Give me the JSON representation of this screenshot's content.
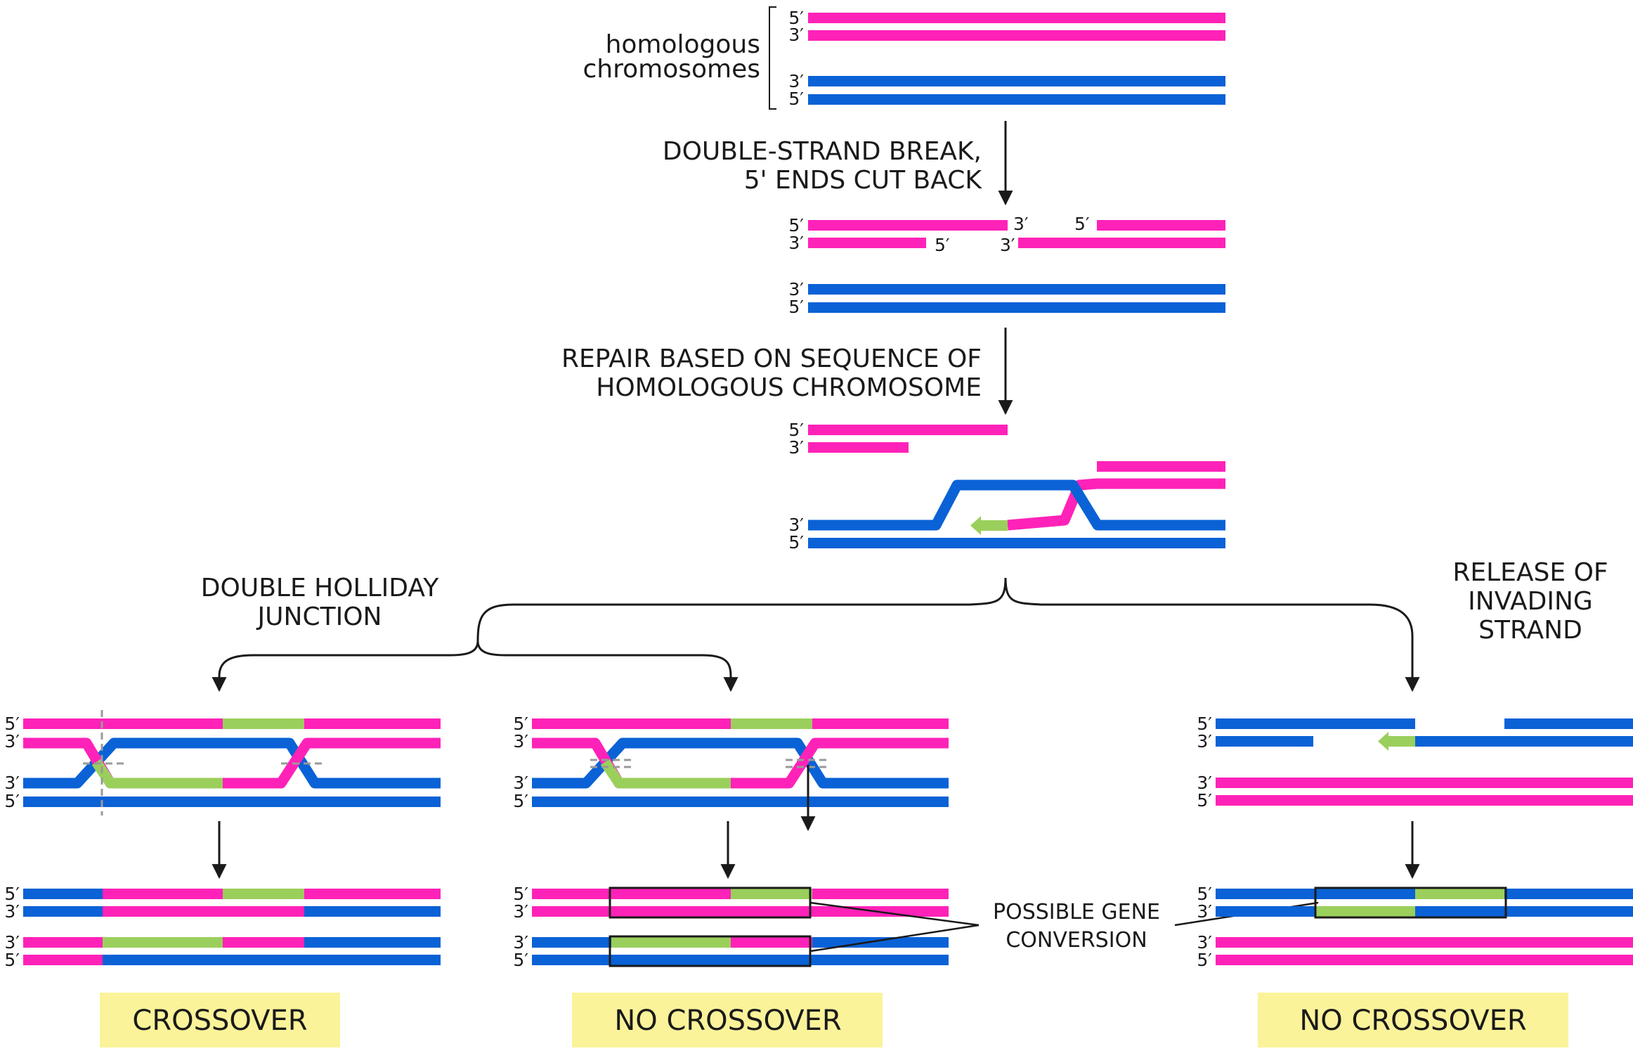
{
  "colors": {
    "pink": "#ff22b8",
    "blue": "#0a62d6",
    "green": "#9bcf5c",
    "label_box": "#fbf39a",
    "ink": "#1a1a1a",
    "cut_marks": "#9a9a9a"
  },
  "strand_ends": {
    "five_prime": "5′",
    "three_prime": "3′"
  },
  "homologous_label": {
    "line1": "homologous",
    "line2": "chromosomes"
  },
  "steps": {
    "break": {
      "line1": "DOUBLE-STRAND BREAK,",
      "line2": "5' ENDS CUT BACK"
    },
    "repair": {
      "line1": "REPAIR BASED ON SEQUENCE OF",
      "line2": "HOMOLOGOUS CHROMOSOME"
    },
    "holliday": {
      "line1": "DOUBLE HOLLIDAY",
      "line2": "JUNCTION"
    },
    "release": {
      "line1": "RELEASE OF",
      "line2": "INVADING",
      "line3": "STRAND"
    }
  },
  "gene_conversion": {
    "line1": "POSSIBLE GENE",
    "line2": "CONVERSION"
  },
  "outcomes": {
    "left": "CROSSOVER",
    "middle": "NO CROSSOVER",
    "right": "NO CROSSOVER"
  }
}
